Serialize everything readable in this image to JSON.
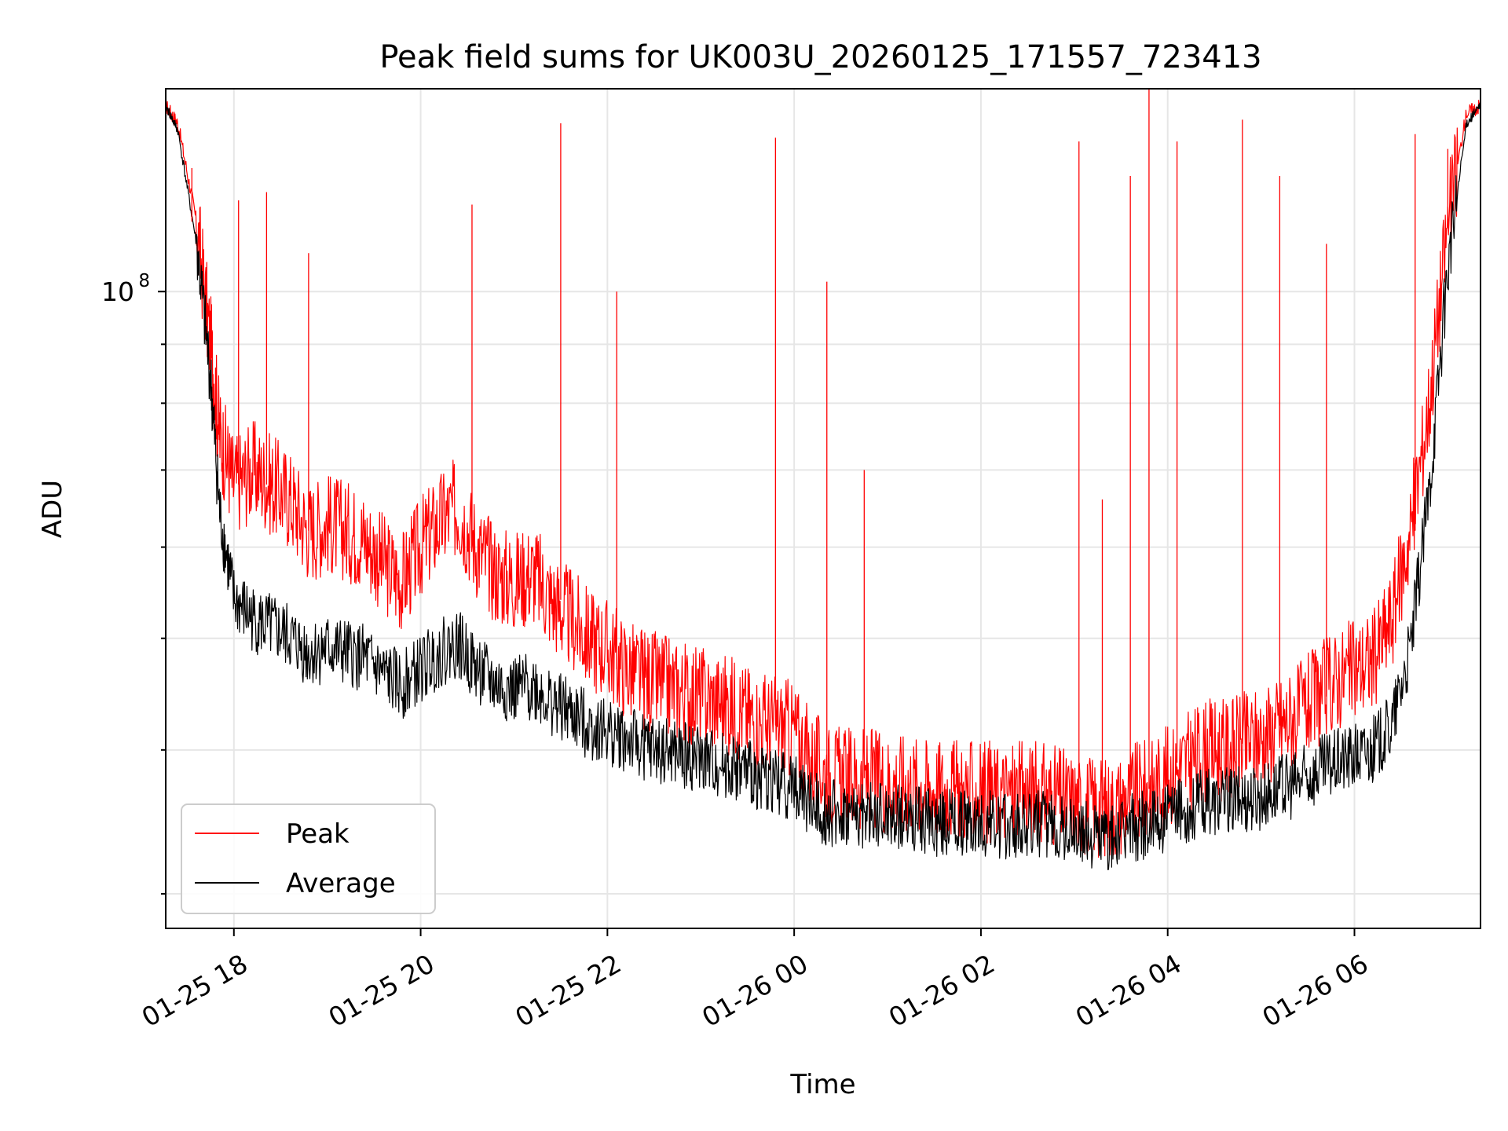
{
  "chart_data": {
    "type": "line",
    "title": "Peak field sums for UK003U_20260125_171557_723413",
    "xlabel": "Time",
    "ylabel": "ADU",
    "yscale": "log",
    "ylim": [
      28000000,
      150000000
    ],
    "xlim_hours": [
      17.27,
      31.35
    ],
    "grid": true,
    "legend_position": "lower-left",
    "x_ticks": [
      {
        "label": "01-25 18",
        "hour": 18
      },
      {
        "label": "01-25 20",
        "hour": 20
      },
      {
        "label": "01-25 22",
        "hour": 22
      },
      {
        "label": "01-26 00",
        "hour": 24
      },
      {
        "label": "01-26 02",
        "hour": 26
      },
      {
        "label": "01-26 04",
        "hour": 28
      },
      {
        "label": "01-26 06",
        "hour": 30
      }
    ],
    "y_ticks": [
      {
        "label": "10",
        "exponent": "8",
        "value": 100000000
      }
    ],
    "y_minor_ticks": [
      30000000,
      40000000,
      50000000,
      60000000,
      70000000,
      80000000,
      90000000,
      200000000
    ],
    "series": [
      {
        "name": "Peak",
        "color": "#ff0000",
        "x_hours": [
          17.27,
          17.4,
          17.6,
          17.75,
          17.85,
          18.0,
          18.2,
          18.4,
          18.6,
          18.8,
          19.0,
          19.2,
          19.4,
          19.6,
          19.8,
          20.0,
          20.2,
          20.4,
          20.6,
          20.8,
          21.0,
          21.2,
          21.4,
          21.6,
          21.8,
          22.0,
          22.2,
          22.4,
          22.6,
          22.8,
          23.0,
          23.2,
          23.4,
          23.6,
          23.8,
          24.0,
          24.2,
          24.4,
          24.6,
          24.8,
          25.0,
          25.2,
          25.4,
          25.6,
          25.8,
          26.0,
          26.2,
          26.4,
          26.6,
          26.8,
          27.0,
          27.2,
          27.4,
          27.6,
          27.8,
          28.0,
          28.2,
          28.4,
          28.6,
          28.8,
          29.0,
          29.2,
          29.4,
          29.6,
          29.8,
          30.0,
          30.2,
          30.4,
          30.6,
          30.8,
          31.0,
          31.2,
          31.35
        ],
        "values": [
          145000000,
          140000000,
          115000000,
          90000000,
          75000000,
          68000000,
          70000000,
          68000000,
          66000000,
          62000000,
          63000000,
          62000000,
          61000000,
          58000000,
          56000000,
          60000000,
          63000000,
          65000000,
          60000000,
          57000000,
          56000000,
          57000000,
          54000000,
          52000000,
          50000000,
          49000000,
          47000000,
          46000000,
          45500000,
          45000000,
          44500000,
          44000000,
          43500000,
          42500000,
          42000000,
          41500000,
          39000000,
          38000000,
          37800000,
          37800000,
          37500000,
          37500000,
          37200000,
          37000000,
          36800000,
          36800000,
          36700000,
          36700000,
          36800000,
          36500000,
          36000000,
          35800000,
          35600000,
          36500000,
          37000000,
          38000000,
          39000000,
          40000000,
          40000000,
          40500000,
          41000000,
          42000000,
          43000000,
          44500000,
          46000000,
          47000000,
          48000000,
          52000000,
          62000000,
          80000000,
          115000000,
          143000000,
          145000000
        ]
      },
      {
        "name": "Average",
        "color": "#000000",
        "x_hours": [
          17.27,
          17.4,
          17.6,
          17.75,
          17.85,
          18.0,
          18.2,
          18.4,
          18.6,
          18.8,
          19.0,
          19.2,
          19.4,
          19.6,
          19.8,
          20.0,
          20.2,
          20.4,
          20.6,
          20.8,
          21.0,
          21.2,
          21.4,
          21.6,
          21.8,
          22.0,
          22.2,
          22.4,
          22.6,
          22.8,
          23.0,
          23.2,
          23.4,
          23.6,
          23.8,
          24.0,
          24.2,
          24.4,
          24.6,
          24.8,
          25.0,
          25.2,
          25.4,
          25.6,
          25.8,
          26.0,
          26.2,
          26.4,
          26.6,
          26.8,
          27.0,
          27.2,
          27.4,
          27.6,
          27.8,
          28.0,
          28.2,
          28.4,
          28.6,
          28.8,
          29.0,
          29.2,
          29.4,
          29.6,
          29.8,
          30.0,
          30.2,
          30.4,
          30.6,
          30.8,
          31.0,
          31.2,
          31.35
        ],
        "values": [
          145000000,
          138000000,
          110000000,
          84000000,
          64000000,
          54000000,
          52000000,
          51000000,
          50000000,
          48500000,
          49000000,
          48500000,
          48000000,
          46500000,
          45500000,
          47000000,
          48500000,
          49500000,
          47000000,
          45500000,
          45000000,
          45500000,
          44000000,
          43000000,
          42000000,
          41500000,
          40800000,
          40200000,
          39800000,
          39500000,
          39200000,
          38800000,
          38500000,
          38000000,
          37600000,
          37200000,
          35800000,
          35200000,
          35000000,
          35000000,
          34900000,
          34900000,
          34700000,
          34600000,
          34500000,
          34500000,
          34400000,
          34400000,
          34500000,
          34300000,
          34000000,
          33800000,
          33600000,
          34200000,
          34500000,
          35000000,
          35500000,
          36000000,
          36000000,
          36300000,
          36500000,
          37000000,
          37500000,
          38300000,
          39000000,
          39500000,
          40000000,
          42000000,
          49000000,
          67000000,
          105000000,
          140000000,
          145000000
        ]
      }
    ],
    "spikes": [
      {
        "series": "Peak",
        "hour": 17.55,
        "value": 128000000
      },
      {
        "series": "Peak",
        "hour": 18.05,
        "value": 120000000
      },
      {
        "series": "Peak",
        "hour": 18.35,
        "value": 122000000
      },
      {
        "series": "Peak",
        "hour": 18.8,
        "value": 108000000
      },
      {
        "series": "Peak",
        "hour": 20.55,
        "value": 119000000
      },
      {
        "series": "Peak",
        "hour": 21.5,
        "value": 140000000
      },
      {
        "series": "Peak",
        "hour": 22.1,
        "value": 100000000
      },
      {
        "series": "Peak",
        "hour": 23.8,
        "value": 136000000
      },
      {
        "series": "Peak",
        "hour": 24.35,
        "value": 102000000
      },
      {
        "series": "Peak",
        "hour": 24.75,
        "value": 70000000
      },
      {
        "series": "Peak",
        "hour": 27.05,
        "value": 135000000
      },
      {
        "series": "Peak",
        "hour": 27.3,
        "value": 66000000
      },
      {
        "series": "Peak",
        "hour": 27.6,
        "value": 126000000
      },
      {
        "series": "Peak",
        "hour": 27.8,
        "value": 150000000
      },
      {
        "series": "Peak",
        "hour": 28.1,
        "value": 135000000
      },
      {
        "series": "Peak",
        "hour": 28.8,
        "value": 141000000
      },
      {
        "series": "Peak",
        "hour": 29.2,
        "value": 126000000
      },
      {
        "series": "Peak",
        "hour": 29.7,
        "value": 110000000
      },
      {
        "series": "Peak",
        "hour": 30.65,
        "value": 137000000
      },
      {
        "series": "Peak",
        "hour": 31.0,
        "value": 133000000
      }
    ]
  },
  "legend": {
    "peak_label": "Peak",
    "average_label": "Average"
  }
}
